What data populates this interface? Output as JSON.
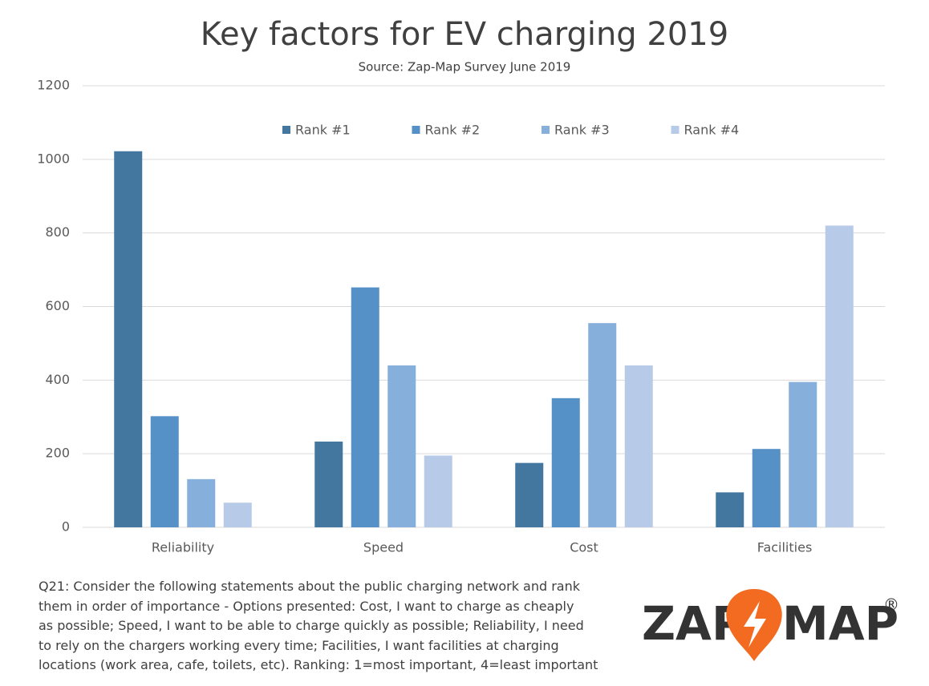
{
  "chart_data": {
    "type": "bar",
    "title": "Key factors for EV charging 2019",
    "subtitle": "Source: Zap-Map Survey June 2019",
    "categories": [
      "Reliability",
      "Speed",
      "Cost",
      "Facilities"
    ],
    "series": [
      {
        "name": "Rank #1",
        "color": "#44779f",
        "values": [
          1022,
          233,
          175,
          95
        ]
      },
      {
        "name": "Rank #2",
        "color": "#5590c6",
        "values": [
          302,
          652,
          351,
          213
        ]
      },
      {
        "name": "Rank #3",
        "color": "#86afdc",
        "values": [
          131,
          440,
          555,
          395
        ]
      },
      {
        "name": "Rank #4",
        "color": "#b7cbe8",
        "values": [
          67,
          195,
          440,
          820
        ]
      }
    ],
    "ylim": [
      0,
      1200
    ],
    "yticks": [
      0,
      200,
      400,
      600,
      800,
      1000,
      1200
    ],
    "grid": true,
    "legend": "top"
  },
  "footnote": [
    "Q21: Consider the following statements about the public charging network and rank",
    "them in order of importance - Options presented: Cost, I want to charge as cheaply",
    "as possible; Speed, I want to be able to charge quickly as possible; Reliability, I need",
    "to rely on the chargers working every time; Facilities, I want facilities at charging",
    "locations (work area, cafe, toilets, etc). Ranking: 1=most important, 4=least important"
  ],
  "logo": {
    "left": "ZAP",
    "right": "MAP",
    "mark": "®"
  }
}
